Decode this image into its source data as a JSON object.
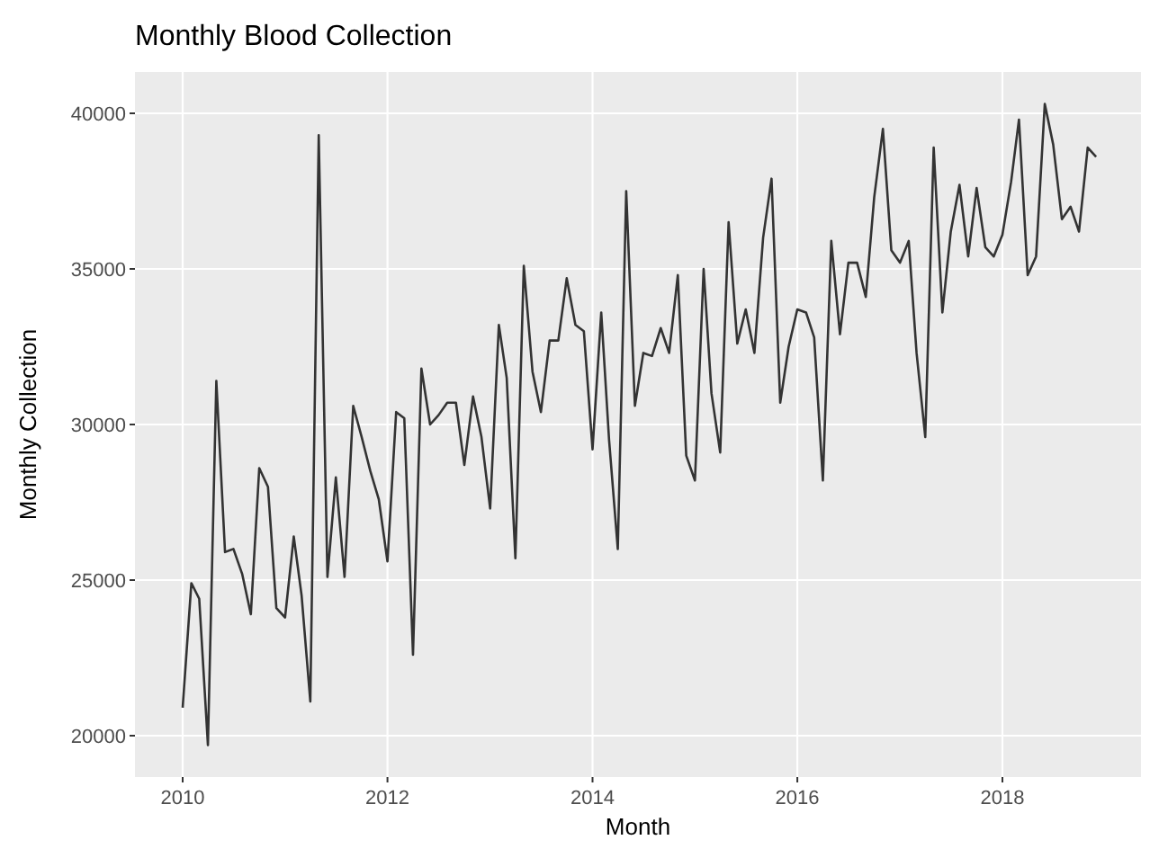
{
  "chart_data": {
    "type": "line",
    "title": "Monthly Blood Collection",
    "xlabel": "Month",
    "ylabel": "Monthly Collection",
    "xlim": [
      "2009-07-15",
      "2019-05-10"
    ],
    "xticks": [
      {
        "value": "2010-01-01",
        "label": "2010"
      },
      {
        "value": "2012-01-01",
        "label": "2012"
      },
      {
        "value": "2014-01-01",
        "label": "2014"
      },
      {
        "value": "2016-01-01",
        "label": "2016"
      },
      {
        "value": "2018-01-01",
        "label": "2018"
      }
    ],
    "ylim": [
      18670,
      41330
    ],
    "yticks": [
      20000,
      25000,
      30000,
      35000,
      40000
    ],
    "grid": true,
    "x": [
      "2010-01",
      "2010-02",
      "2010-03",
      "2010-04",
      "2010-05",
      "2010-06",
      "2010-07",
      "2010-08",
      "2010-09",
      "2010-10",
      "2010-11",
      "2010-12",
      "2011-01",
      "2011-02",
      "2011-03",
      "2011-04",
      "2011-05",
      "2011-06",
      "2011-07",
      "2011-08",
      "2011-09",
      "2011-10",
      "2011-11",
      "2011-12",
      "2012-01",
      "2012-02",
      "2012-03",
      "2012-04",
      "2012-05",
      "2012-06",
      "2012-07",
      "2012-08",
      "2012-09",
      "2012-10",
      "2012-11",
      "2012-12",
      "2013-01",
      "2013-02",
      "2013-03",
      "2013-04",
      "2013-05",
      "2013-06",
      "2013-07",
      "2013-08",
      "2013-09",
      "2013-10",
      "2013-11",
      "2013-12",
      "2014-01",
      "2014-02",
      "2014-03",
      "2014-04",
      "2014-05",
      "2014-06",
      "2014-07",
      "2014-08",
      "2014-09",
      "2014-10",
      "2014-11",
      "2014-12",
      "2015-01",
      "2015-02",
      "2015-03",
      "2015-04",
      "2015-05",
      "2015-06",
      "2015-07",
      "2015-08",
      "2015-09",
      "2015-10",
      "2015-11",
      "2015-12",
      "2016-01",
      "2016-02",
      "2016-03",
      "2016-04",
      "2016-05",
      "2016-06",
      "2016-07",
      "2016-08",
      "2016-09",
      "2016-10",
      "2016-11",
      "2016-12",
      "2017-01",
      "2017-02",
      "2017-03",
      "2017-04",
      "2017-05",
      "2017-06",
      "2017-07",
      "2017-08",
      "2017-09",
      "2017-10",
      "2017-11",
      "2017-12",
      "2018-01",
      "2018-02",
      "2018-03",
      "2018-04",
      "2018-05",
      "2018-06",
      "2018-07",
      "2018-08",
      "2018-09",
      "2018-10",
      "2018-11",
      "2018-12"
    ],
    "series": [
      {
        "color": "#333333",
        "values": [
          20900,
          24900,
          24400,
          19700,
          31400,
          25900,
          26000,
          25200,
          23900,
          28600,
          28000,
          24100,
          23800,
          26400,
          24500,
          21100,
          39300,
          25100,
          28300,
          25100,
          30600,
          29600,
          28500,
          27600,
          25600,
          30400,
          30200,
          22600,
          31800,
          30000,
          30300,
          30700,
          30700,
          28700,
          30900,
          29600,
          27300,
          33200,
          31500,
          25700,
          35100,
          31700,
          30400,
          32700,
          32700,
          34700,
          33200,
          33000,
          29200,
          33600,
          29500,
          26000,
          37500,
          30600,
          32300,
          32200,
          33100,
          32300,
          34800,
          29000,
          28200,
          35000,
          31000,
          29100,
          36500,
          32600,
          33700,
          32300,
          36000,
          37900,
          30700,
          32500,
          33700,
          33600,
          32800,
          28200,
          35900,
          32900,
          35200,
          35200,
          34100,
          37300,
          39500,
          35600,
          35200,
          35900,
          32300,
          29600,
          38900,
          33600,
          36200,
          37700,
          35400,
          37600,
          35700,
          35400,
          36100,
          37800,
          39800,
          34800,
          35400,
          40300,
          39000,
          36600,
          37000,
          36200,
          38900,
          38600
        ]
      }
    ]
  }
}
